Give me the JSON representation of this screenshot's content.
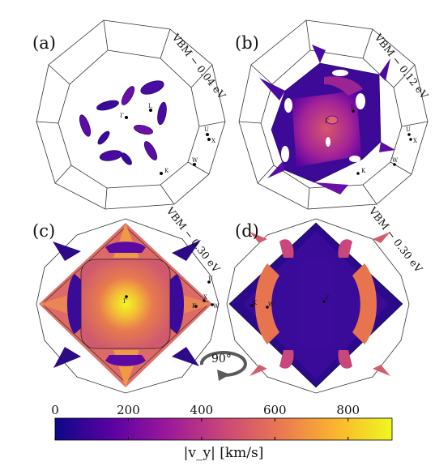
{
  "panels": [
    {
      "id": "a",
      "label": "(a)",
      "annotation": "VBM − 0.04 eV",
      "high_symmetry": {
        "gamma": "Γ",
        "L": "L",
        "U": "U",
        "X": "X",
        "K": "K",
        "W": "W"
      }
    },
    {
      "id": "b",
      "label": "(b)",
      "annotation": "VBM − 0.12 eV",
      "high_symmetry": {
        "gamma": "Γ",
        "L": "L",
        "U": "U",
        "X": "X",
        "K": "K",
        "W": "W"
      }
    },
    {
      "id": "c",
      "label": "(c)",
      "annotation": "VBM − 0.30 eV",
      "high_symmetry": {
        "gamma": "Γ",
        "U": "U",
        "X": "X",
        "K": "K",
        "W": "W"
      }
    },
    {
      "id": "d",
      "label": "(d)",
      "annotation": "VBM − 0.30 eV",
      "high_symmetry": {
        "gamma": "Γ",
        "K": "K",
        "W": "W"
      }
    }
  ],
  "rotation": {
    "label": "90°"
  },
  "colorbar": {
    "ticks": [
      "0",
      "200",
      "400",
      "600",
      "800"
    ],
    "tick_values": [
      0,
      200,
      400,
      600,
      800
    ],
    "range": [
      0,
      920
    ],
    "label": "|v_y| [km/s]",
    "colormap": "plasma",
    "colors": [
      "#0d0887",
      "#5b02a3",
      "#9a179b",
      "#cb4678",
      "#eb7852",
      "#fbb32f",
      "#eff821"
    ]
  }
}
